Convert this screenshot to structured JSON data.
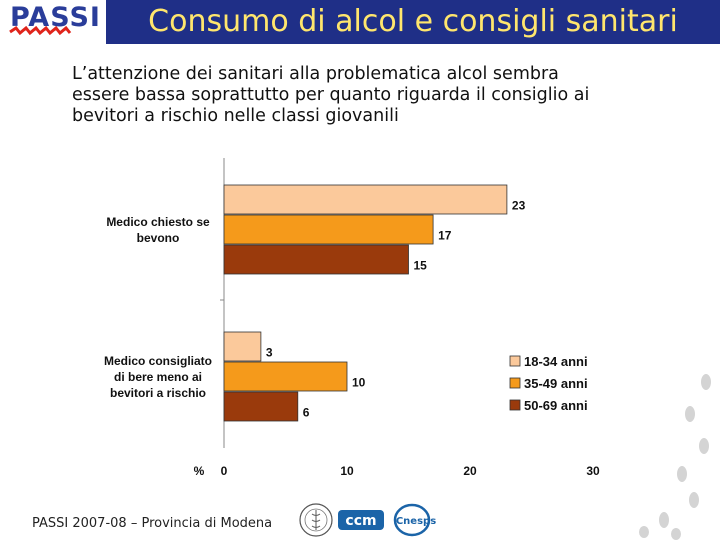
{
  "header": {
    "logo_text": "PASSI",
    "title": "Consumo di alcol e consigli sanitari"
  },
  "subtitle": {
    "lines": [
      "L’attenzione dei sanitari alla problematica alcol sembra",
      "essere bassa soprattutto per quanto riguarda il consiglio ai",
      "bevitori a rischio nelle classi giovanili"
    ]
  },
  "chart_data": {
    "type": "bar",
    "orientation": "horizontal",
    "categories": [
      [
        "Medico chiesto se",
        "bevono"
      ],
      [
        "Medico consigliato",
        "di bere meno ai",
        "bevitori a rischio"
      ]
    ],
    "series": [
      {
        "name": "18-34 anni",
        "values": [
          23,
          3
        ],
        "color": "#fbc99b"
      },
      {
        "name": "35-49 anni",
        "values": [
          17,
          10
        ],
        "color": "#f59a1b"
      },
      {
        "name": "50-69 anni",
        "values": [
          15,
          6
        ],
        "color": "#9a3a0c"
      }
    ],
    "xlabel": "%",
    "xlim": [
      0,
      30
    ],
    "xticks": [
      0,
      10,
      20,
      30
    ],
    "grid": false,
    "legend_position": "bottom-right"
  },
  "footer": {
    "text": "PASSI 2007-08 – Provincia di Modena",
    "partner_logos": [
      "iss-seal-icon",
      "ccm-logo-icon",
      "cnesps-logo-icon"
    ]
  },
  "colors": {
    "title_bar": "#1f2f87",
    "title_text": "#ffe66d",
    "logo_red": "#e0241b"
  }
}
